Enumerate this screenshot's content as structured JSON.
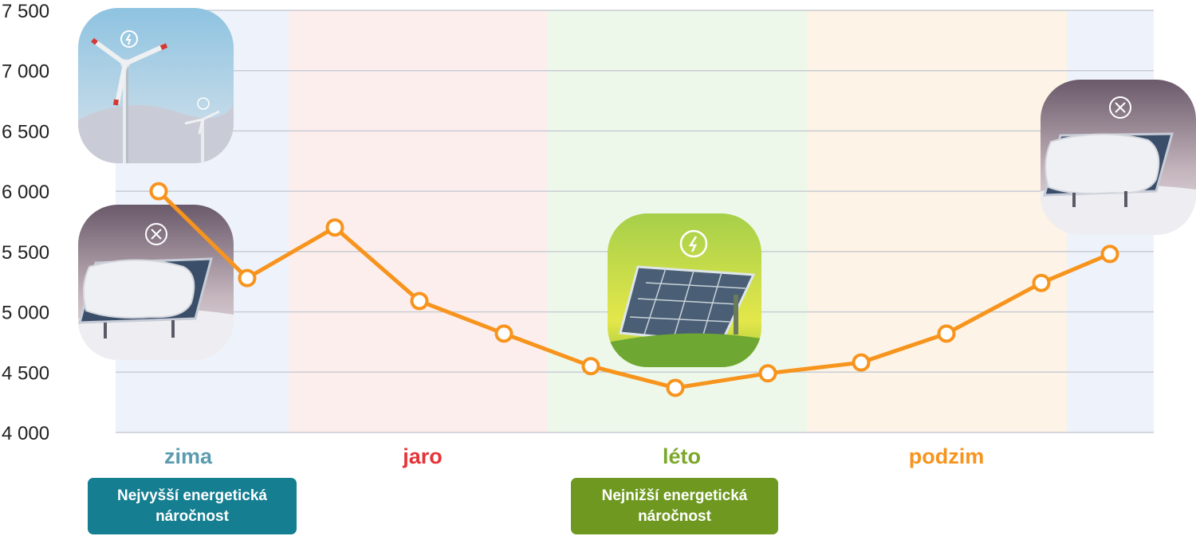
{
  "chart_data": {
    "type": "line",
    "title": "",
    "xlabel": "",
    "ylabel": "",
    "ylim": [
      4000,
      7500
    ],
    "yticks": [
      "4 000",
      "4 500",
      "5 000",
      "5 500",
      "6 000",
      "6 500",
      "7 000",
      "7 500"
    ],
    "ytick_values": [
      4000,
      4500,
      5000,
      5500,
      6000,
      6500,
      7000,
      7500
    ],
    "grid": true,
    "series": [
      {
        "values": [
          6000,
          5280,
          5700,
          5090,
          4820,
          4550,
          4370,
          4490,
          4580,
          4820,
          5240,
          5480
        ]
      }
    ],
    "seasons": [
      {
        "label": "zima",
        "color": "#5b9bb0",
        "bg": "#eef3fb"
      },
      {
        "label": "jaro",
        "color": "#e63338",
        "bg": "#fdeeee"
      },
      {
        "label": "léto",
        "color": "#7ba82a",
        "bg": "#eef8ea"
      },
      {
        "label": "podzim",
        "color": "#f7941d",
        "bg": "#fdf3e6"
      }
    ],
    "line_color": "#f7941d"
  },
  "annotations": {
    "highest": "Nejvyšší energetická\nnáročnost",
    "highest_color": "#157e91",
    "lowest": "Nejnižší energetická\nnáročnost",
    "lowest_color": "#6e981f"
  },
  "icons": [
    "wind-turbine-icon",
    "snow-covered-solar-panel-icon",
    "sunny-solar-panel-icon",
    "snow-covered-solar-panel-icon"
  ]
}
